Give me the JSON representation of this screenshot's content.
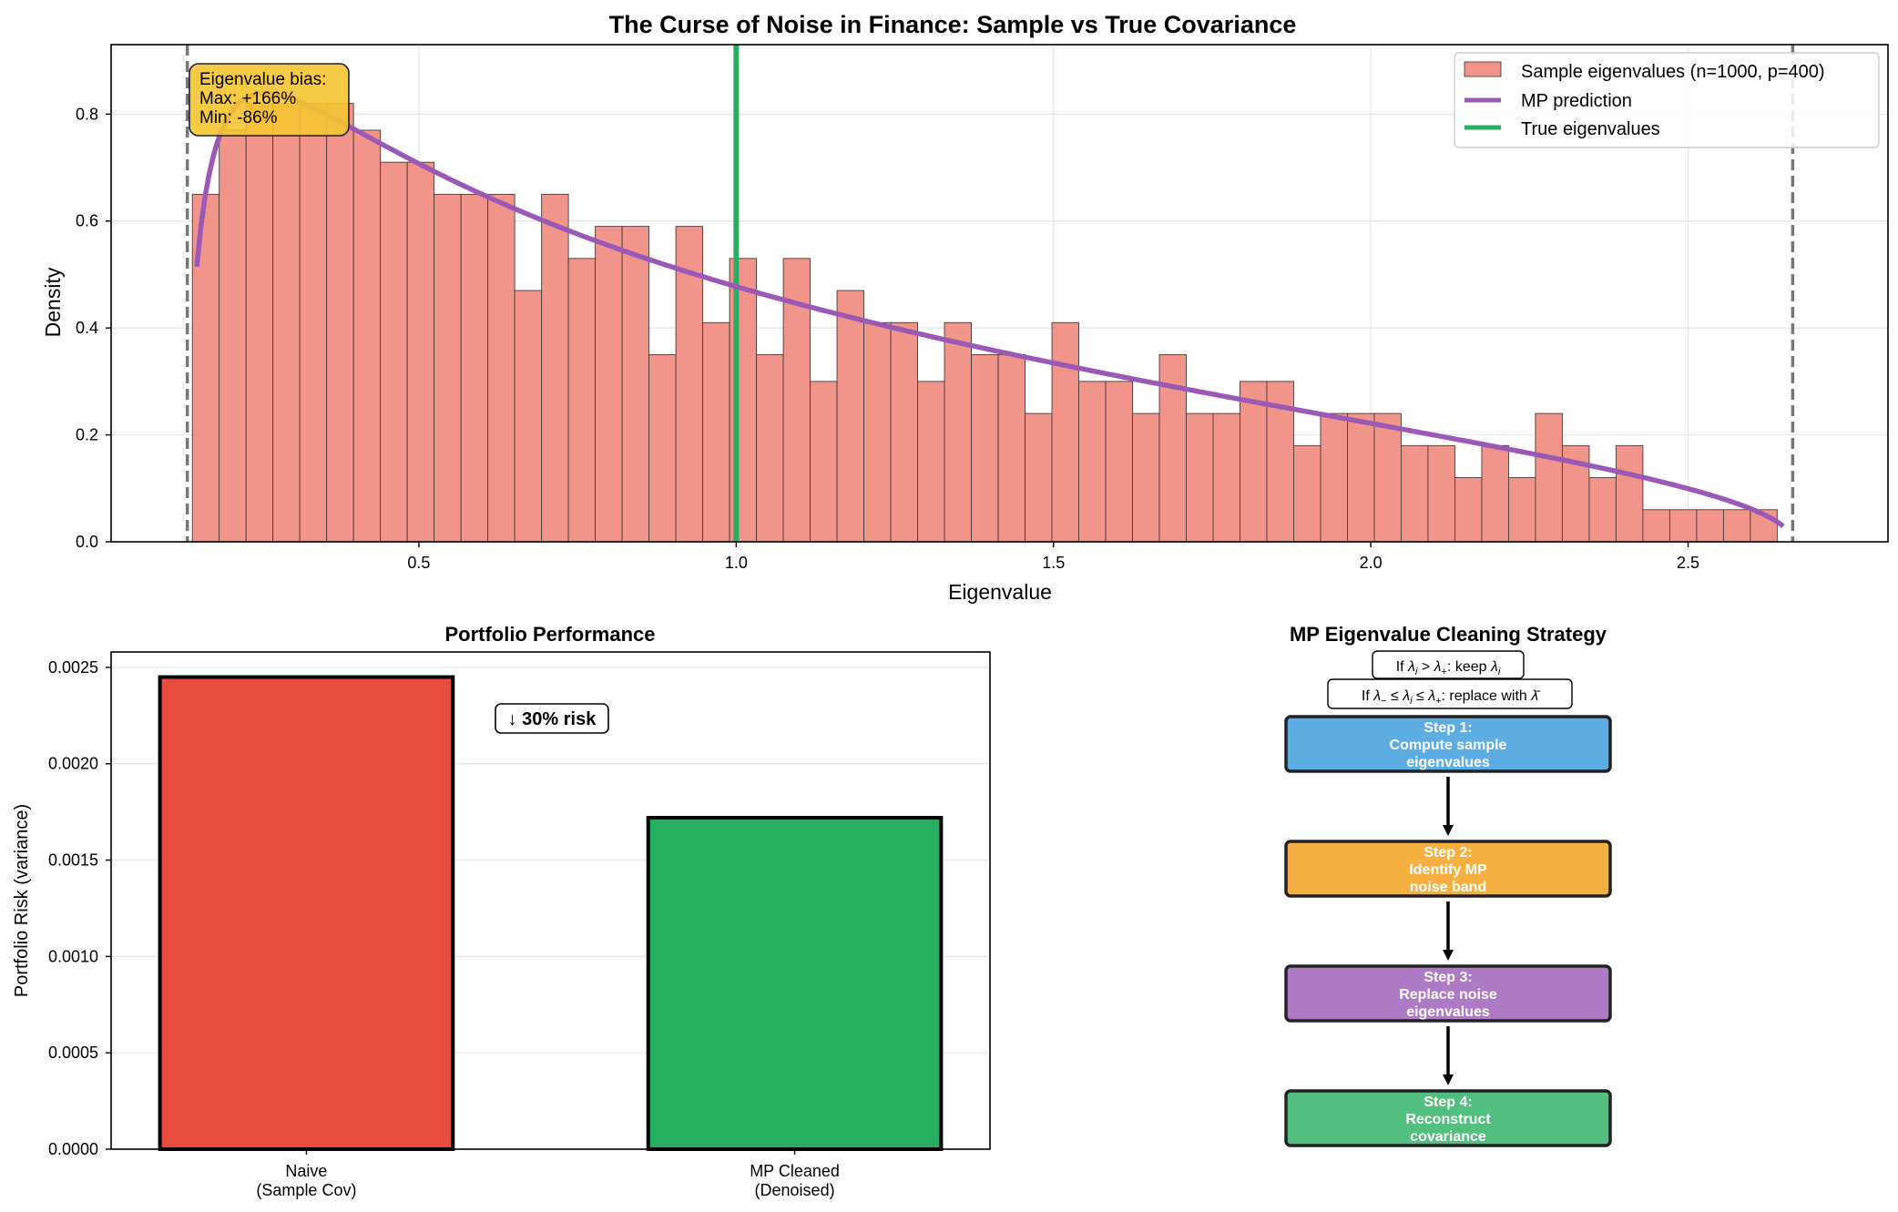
{
  "chart_data": [
    {
      "type": "histogram",
      "title": "The Curse of Noise in Finance: Sample vs True Covariance",
      "xlabel": "Eigenvalue",
      "ylabel": "Density",
      "xlim": [
        0.015,
        2.815
      ],
      "ylim": [
        0,
        0.93
      ],
      "xticks": [
        0.5,
        1.0,
        1.5,
        2.0,
        2.5
      ],
      "xtick_labels": [
        "0.5",
        "1.0",
        "1.5",
        "2.0",
        "2.5"
      ],
      "yticks": [
        0.0,
        0.2,
        0.4,
        0.6,
        0.8
      ],
      "ytick_labels": [
        "0.0",
        "0.2",
        "0.4",
        "0.6",
        "0.8"
      ],
      "grid": true,
      "legend_position": "top-right",
      "bins": {
        "start": 0.143,
        "width": 0.04233,
        "densities": [
          0.65,
          0.77,
          0.82,
          0.82,
          0.82,
          0.82,
          0.77,
          0.71,
          0.71,
          0.65,
          0.65,
          0.65,
          0.47,
          0.65,
          0.53,
          0.59,
          0.59,
          0.35,
          0.59,
          0.41,
          0.53,
          0.35,
          0.53,
          0.3,
          0.47,
          0.41,
          0.41,
          0.3,
          0.41,
          0.35,
          0.35,
          0.24,
          0.41,
          0.3,
          0.3,
          0.24,
          0.35,
          0.24,
          0.24,
          0.3,
          0.3,
          0.18,
          0.24,
          0.24,
          0.24,
          0.18,
          0.18,
          0.12,
          0.18,
          0.12,
          0.24,
          0.18,
          0.12,
          0.18,
          0.06,
          0.06,
          0.06,
          0.06,
          0.06
        ],
        "color": "#f1948a"
      },
      "mp_curve": {
        "name": "MP prediction",
        "q": 0.4,
        "sigma2": 1.0,
        "lambda_minus": 0.1351,
        "lambda_plus": 2.6649,
        "color": "#9b59b6"
      },
      "true_eigenvalue": {
        "name": "True eigenvalues",
        "value": 1.0,
        "color": "#27ae60"
      },
      "mp_bounds": [
        0.1351,
        2.6649
      ],
      "legend": [
        "Sample eigenvalues (n=1000, p=400)",
        "MP prediction",
        "True eigenvalues"
      ],
      "annotation": {
        "line1": "Eigenvalue bias:",
        "line2": "Max: +166%",
        "line3": "Min: -86%"
      }
    },
    {
      "type": "bar",
      "title": "Portfolio Performance",
      "ylabel": "Portfolio Risk (variance)",
      "categories": [
        {
          "line1": "Naive",
          "line2": "(Sample Cov)"
        },
        {
          "line1": "MP Cleaned",
          "line2": "(Denoised)"
        }
      ],
      "values": [
        0.00245,
        0.00172
      ],
      "colors": [
        "#e74c3c",
        "#27ae60"
      ],
      "ylim": [
        0,
        0.00258
      ],
      "yticks": [
        0,
        0.0005,
        0.001,
        0.0015,
        0.002,
        0.0025
      ],
      "ytick_labels": [
        "0.0000",
        "0.0005",
        "0.0010",
        "0.0015",
        "0.0020",
        "0.0025"
      ],
      "annotation": "↓ 30% risk",
      "grid": true
    },
    {
      "type": "diagram",
      "title": "MP Eigenvalue Cleaning Strategy",
      "rules": [
        {
          "if": "If ",
          "l1": "λ",
          "s1": "i",
          "mid": " > ",
          "l2": "λ",
          "s2": "+",
          "tail": ": keep ",
          "l3": "λ",
          "s3": "i"
        },
        {
          "if": "If ",
          "l1": "λ",
          "s1": "−",
          "mid": " ≤ ",
          "l2": "λ",
          "s2": "i",
          "mid2": " ≤ ",
          "l3": "λ",
          "s3": "+",
          "tail": ": replace with ",
          "l4": "λ̄"
        }
      ],
      "steps": [
        {
          "head": "Step 1:",
          "line2": "Compute sample",
          "line3": "eigenvalues",
          "color": "#5dade2"
        },
        {
          "head": "Step 2:",
          "line2": "Identify MP",
          "line3": "noise band",
          "color": "#f5b041"
        },
        {
          "head": "Step 3:",
          "line2": "Replace noise",
          "line3": "eigenvalues",
          "color": "#af7ac5"
        },
        {
          "head": "Step 4:",
          "line2": "Reconstruct",
          "line3": "covariance",
          "color": "#52be80"
        }
      ]
    }
  ]
}
